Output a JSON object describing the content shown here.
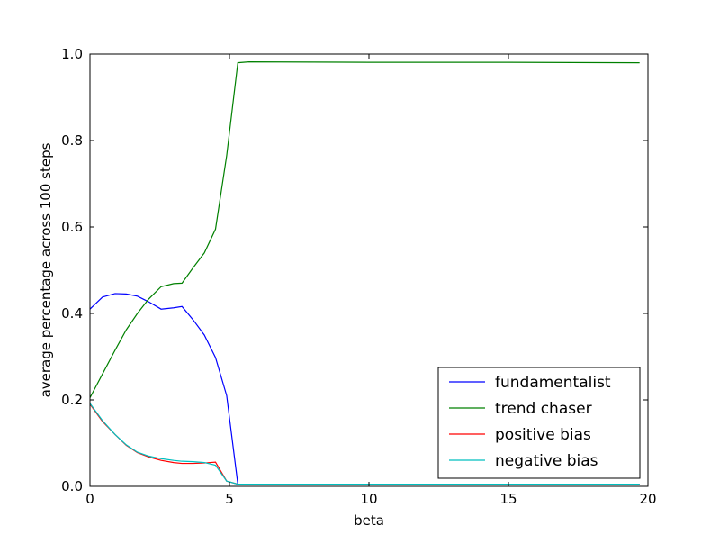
{
  "chart_data": {
    "type": "line",
    "title": "",
    "xlabel": "beta",
    "ylabel": "average percentage across 100 steps",
    "xlim": [
      0,
      20
    ],
    "ylim": [
      0.0,
      1.0
    ],
    "xticks": [
      0,
      5,
      10,
      15,
      20
    ],
    "xtick_labels": [
      "0",
      "5",
      "10",
      "15",
      "20"
    ],
    "yticks": [
      0.0,
      0.2,
      0.4,
      0.6,
      0.8,
      1.0
    ],
    "ytick_labels": [
      "0.0",
      "0.2",
      "0.4",
      "0.6",
      "0.8",
      "1.0"
    ],
    "grid": false,
    "legend_position": "lower-right",
    "series": [
      {
        "name": "fundamentalist",
        "color": "#0000ff",
        "x": [
          0,
          0.45,
          0.9,
          1.3,
          1.7,
          2.1,
          2.55,
          3.0,
          3.3,
          3.7,
          4.1,
          4.5,
          4.9,
          5.3,
          6.0,
          10,
          15,
          19.7
        ],
        "y": [
          0.41,
          0.438,
          0.446,
          0.445,
          0.44,
          0.427,
          0.41,
          0.413,
          0.416,
          0.385,
          0.35,
          0.298,
          0.21,
          0.005,
          0.005,
          0.005,
          0.005,
          0.005
        ]
      },
      {
        "name": "trend chaser",
        "color": "#008000",
        "x": [
          0,
          0.45,
          0.9,
          1.3,
          1.7,
          2.1,
          2.55,
          3.0,
          3.3,
          3.7,
          4.1,
          4.5,
          4.9,
          5.3,
          5.7,
          10,
          15,
          19.7
        ],
        "y": [
          0.205,
          0.26,
          0.315,
          0.362,
          0.4,
          0.433,
          0.462,
          0.469,
          0.47,
          0.506,
          0.54,
          0.595,
          0.765,
          0.98,
          0.982,
          0.981,
          0.981,
          0.98
        ]
      },
      {
        "name": "positive bias",
        "color": "#ff0000",
        "x": [
          0,
          0.45,
          0.9,
          1.3,
          1.7,
          2.1,
          2.55,
          3.0,
          3.3,
          3.7,
          4.1,
          4.5,
          4.9,
          5.3,
          6.0,
          10,
          15,
          19.7
        ],
        "y": [
          0.19,
          0.15,
          0.12,
          0.095,
          0.078,
          0.068,
          0.06,
          0.055,
          0.053,
          0.053,
          0.054,
          0.056,
          0.012,
          0.005,
          0.005,
          0.005,
          0.005,
          0.005
        ]
      },
      {
        "name": "negative bias",
        "color": "#00bfbf",
        "x": [
          0,
          0.45,
          0.9,
          1.3,
          1.7,
          2.1,
          2.55,
          3.0,
          3.3,
          3.7,
          4.1,
          4.5,
          4.9,
          5.3,
          6.0,
          10,
          15,
          19.7
        ],
        "y": [
          0.192,
          0.152,
          0.12,
          0.096,
          0.079,
          0.07,
          0.064,
          0.06,
          0.058,
          0.057,
          0.055,
          0.049,
          0.012,
          0.005,
          0.005,
          0.005,
          0.005,
          0.005
        ]
      }
    ]
  }
}
